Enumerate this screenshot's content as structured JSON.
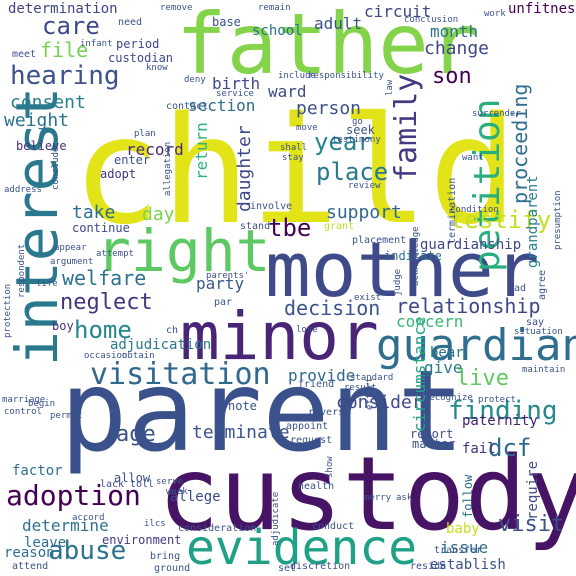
{
  "words": [
    {
      "text": "child",
      "color": "#e2e418"
    },
    {
      "text": "father",
      "color": "#84d44b"
    },
    {
      "text": "parent",
      "color": "#3b518b"
    },
    {
      "text": "custody",
      "color": "#471365"
    },
    {
      "text": "mother",
      "color": "#3e4a89"
    },
    {
      "text": "interest",
      "color": "#2a788e"
    },
    {
      "text": "minor",
      "color": "#482576"
    },
    {
      "text": "evidence",
      "color": "#1fa187"
    },
    {
      "text": "right",
      "color": "#5ec962"
    },
    {
      "text": "guardian",
      "color": "#2e6e8e"
    },
    {
      "text": "petition",
      "color": "#29af7f"
    },
    {
      "text": "visitation",
      "color": "#31688e"
    },
    {
      "text": "adoption",
      "color": "#440154"
    },
    {
      "text": "hearing",
      "color": "#3b528b"
    },
    {
      "text": "family",
      "color": "#443983"
    },
    {
      "text": "finding",
      "color": "#238a8d"
    },
    {
      "text": "abuse",
      "color": "#2c728e"
    },
    {
      "text": "home",
      "color": "#25848e"
    },
    {
      "text": "care",
      "color": "#3e4989"
    },
    {
      "text": "tbe",
      "color": "#440154"
    },
    {
      "text": "testify",
      "color": "#c2df23"
    },
    {
      "text": "proceeding",
      "color": "#2d708e"
    },
    {
      "text": "relationship",
      "color": "#3f4788"
    },
    {
      "text": "live",
      "color": "#5ec962"
    },
    {
      "text": "year",
      "color": "#26828e"
    },
    {
      "text": "place",
      "color": "#29798e"
    },
    {
      "text": "terminate",
      "color": "#3a548c"
    },
    {
      "text": "neglect",
      "color": "#46337e"
    },
    {
      "text": "welfare",
      "color": "#2d718e"
    },
    {
      "text": "age",
      "color": "#3b528b"
    },
    {
      "text": "dcf",
      "color": "#31688e"
    },
    {
      "text": "support",
      "color": "#31688e"
    },
    {
      "text": "son",
      "color": "#440154"
    },
    {
      "text": "decision",
      "color": "#3a548c"
    },
    {
      "text": "consent",
      "color": "#277f8e"
    },
    {
      "text": "consider",
      "color": "#3e4989"
    },
    {
      "text": "person",
      "color": "#3b528b"
    },
    {
      "text": "circumstance",
      "color": "#20a386"
    },
    {
      "text": "determine",
      "color": "#2c728e"
    },
    {
      "text": "visit",
      "color": "#3b528b"
    },
    {
      "text": "change",
      "color": "#414487"
    },
    {
      "text": "daughter",
      "color": "#3e4989"
    },
    {
      "text": "section",
      "color": "#2e6e8e"
    },
    {
      "text": "record",
      "color": "#482878"
    },
    {
      "text": "weight",
      "color": "#2c728e"
    },
    {
      "text": "file",
      "color": "#75d054"
    },
    {
      "text": "provide",
      "color": "#31688e"
    },
    {
      "text": "concern",
      "color": "#37b878"
    },
    {
      "text": "party",
      "color": "#38588c"
    },
    {
      "text": "month",
      "color": "#2d708e"
    },
    {
      "text": "birth",
      "color": "#3e4a89"
    },
    {
      "text": "return",
      "color": "#2db27d"
    },
    {
      "text": "give",
      "color": "#287c8e"
    },
    {
      "text": "circuit",
      "color": "#3f4788"
    },
    {
      "text": "adult",
      "color": "#3b528b"
    },
    {
      "text": "ward",
      "color": "#3e4a89"
    },
    {
      "text": "take",
      "color": "#2e6d8e"
    },
    {
      "text": "day",
      "color": "#7ad151"
    },
    {
      "text": "issue",
      "color": "#2e6d8e"
    },
    {
      "text": "establish",
      "color": "#3a548c"
    },
    {
      "text": "require",
      "color": "#3e4a89"
    },
    {
      "text": "guardianship",
      "color": "#3f4788"
    },
    {
      "text": "grandparent",
      "color": "#277f8e"
    },
    {
      "text": "adjudication",
      "color": "#2a788e"
    },
    {
      "text": "report",
      "color": "#3b528b"
    },
    {
      "text": "allege",
      "color": "#3e4989"
    },
    {
      "text": "bear",
      "color": "#2d718e"
    },
    {
      "text": "paternity",
      "color": "#482173"
    },
    {
      "text": "determination",
      "color": "#414487"
    },
    {
      "text": "environment",
      "color": "#443983"
    },
    {
      "text": "unfitness",
      "color": "#440154"
    },
    {
      "text": "school",
      "color": "#2c728e"
    },
    {
      "text": "base",
      "color": "#3b528b"
    },
    {
      "text": "period",
      "color": "#3f4788"
    },
    {
      "text": "custodian",
      "color": "#3e4a89"
    },
    {
      "text": "believe",
      "color": "#46327e"
    },
    {
      "text": "adopt",
      "color": "#46337e"
    },
    {
      "text": "enter",
      "color": "#3b528b"
    },
    {
      "text": "continue",
      "color": "#3e4989"
    },
    {
      "text": "factor",
      "color": "#2c728e"
    },
    {
      "text": "baby",
      "color": "#c8e020"
    },
    {
      "text": "leave",
      "color": "#2c728e"
    },
    {
      "text": "reason",
      "color": "#2e6d8e"
    },
    {
      "text": "fail",
      "color": "#46337e"
    },
    {
      "text": "matter",
      "color": "#3b528b"
    },
    {
      "text": "note",
      "color": "#3b528b"
    },
    {
      "text": "boy",
      "color": "#46337e"
    },
    {
      "text": "indicate",
      "color": "#2e6d8e"
    },
    {
      "text": "follow",
      "color": "#2d708e"
    },
    {
      "text": "need",
      "color": "#3b528b"
    },
    {
      "text": "meet",
      "color": "#3b528b"
    },
    {
      "text": "contact",
      "color": "#3b528b"
    },
    {
      "text": "seek",
      "color": "#3b528b"
    },
    {
      "text": "grant",
      "color": "#b8de29"
    },
    {
      "text": "involve",
      "color": "#3b528b"
    },
    {
      "text": "stand",
      "color": "#3b528b"
    },
    {
      "text": "allow",
      "color": "#3b528b"
    },
    {
      "text": "lack",
      "color": "#3b528b"
    },
    {
      "text": "toll",
      "color": "#3b528b"
    },
    {
      "text": "conduct",
      "color": "#3b528b"
    },
    {
      "text": "health",
      "color": "#3b528b"
    },
    {
      "text": "appoint",
      "color": "#3b528b"
    },
    {
      "text": "reverse",
      "color": "#3b528b"
    },
    {
      "text": "request",
      "color": "#3b528b"
    },
    {
      "text": "friend",
      "color": "#3b528b"
    },
    {
      "text": "discretion",
      "color": "#3b528b"
    },
    {
      "text": "transfer",
      "color": "#3b528b"
    },
    {
      "text": "reside",
      "color": "#3b528b"
    },
    {
      "text": "attend",
      "color": "#3b528b"
    },
    {
      "text": "ground",
      "color": "#3b528b"
    },
    {
      "text": "bring",
      "color": "#3b528b"
    },
    {
      "text": "set",
      "color": "#3b528b"
    },
    {
      "text": "say",
      "color": "#3b528b"
    },
    {
      "text": "ad",
      "color": "#3b528b"
    },
    {
      "text": "agree",
      "color": "#3b528b"
    },
    {
      "text": "ch",
      "color": "#3b528b"
    },
    {
      "text": "par",
      "color": "#3b528b"
    },
    {
      "text": "consideration",
      "color": "#3b528b"
    },
    {
      "text": "testimony",
      "color": "#3b528b"
    },
    {
      "text": "termination",
      "color": "#3b528b"
    },
    {
      "text": "placement",
      "color": "#3b528b"
    },
    {
      "text": "parents'",
      "color": "#3b528b"
    },
    {
      "text": "address",
      "color": "#3b528b"
    },
    {
      "text": "conclude",
      "color": "#3b528b"
    },
    {
      "text": "protection",
      "color": "#3b528b"
    },
    {
      "text": "respondent",
      "color": "#3b528b"
    },
    {
      "text": "argument",
      "color": "#3b528b"
    },
    {
      "text": "appear",
      "color": "#3b528b"
    },
    {
      "text": "attempt",
      "color": "#3b528b"
    },
    {
      "text": "life",
      "color": "#3b528b"
    },
    {
      "text": "occasion",
      "color": "#3b528b"
    },
    {
      "text": "obtain",
      "color": "#3b528b"
    },
    {
      "text": "marriage",
      "color": "#3b528b"
    },
    {
      "text": "control",
      "color": "#3b528b"
    },
    {
      "text": "permit",
      "color": "#3b528b"
    },
    {
      "text": "begin",
      "color": "#3b528b"
    },
    {
      "text": "infant",
      "color": "#3b528b"
    },
    {
      "text": "know",
      "color": "#3b528b"
    },
    {
      "text": "remove",
      "color": "#3b528b"
    },
    {
      "text": "remain",
      "color": "#3b528b"
    },
    {
      "text": "responsibility",
      "color": "#3b528b"
    },
    {
      "text": "include",
      "color": "#3b528b"
    },
    {
      "text": "service",
      "color": "#3b528b"
    },
    {
      "text": "deny",
      "color": "#3b528b"
    },
    {
      "text": "conclusion",
      "color": "#3b528b"
    },
    {
      "text": "work",
      "color": "#3b528b"
    },
    {
      "text": "surrender",
      "color": "#3b528b"
    },
    {
      "text": "want",
      "color": "#3b528b"
    },
    {
      "text": "condition",
      "color": "#3b528b"
    },
    {
      "text": "presumption",
      "color": "#3b528b"
    },
    {
      "text": "acknowledge",
      "color": "#3b528b"
    },
    {
      "text": "judge",
      "color": "#3b528b"
    },
    {
      "text": "exist",
      "color": "#3b528b"
    },
    {
      "text": "love",
      "color": "#3b528b"
    },
    {
      "text": "situation",
      "color": "#3b528b"
    },
    {
      "text": "maintain",
      "color": "#3b528b"
    },
    {
      "text": "recognize",
      "color": "#3b528b"
    },
    {
      "text": "protect",
      "color": "#3b528b"
    },
    {
      "text": "effort",
      "color": "#3b528b"
    },
    {
      "text": "result",
      "color": "#3b528b"
    },
    {
      "text": "standard",
      "color": "#3b528b"
    },
    {
      "text": "plan",
      "color": "#3b528b"
    },
    {
      "text": "stay",
      "color": "#3b528b"
    },
    {
      "text": "shall",
      "color": "#3b528b"
    },
    {
      "text": "allegation",
      "color": "#3b528b"
    },
    {
      "text": "review",
      "color": "#3b528b"
    },
    {
      "text": "move",
      "color": "#3b528b"
    },
    {
      "text": "show",
      "color": "#3b528b"
    },
    {
      "text": "serve",
      "color": "#3b528b"
    },
    {
      "text": "week",
      "color": "#3b528b"
    },
    {
      "text": "accord",
      "color": "#3b528b"
    },
    {
      "text": "adjudicate",
      "color": "#3b528b"
    },
    {
      "text": "merry",
      "color": "#3b528b"
    },
    {
      "text": "ask",
      "color": "#3b528b"
    },
    {
      "text": "law",
      "color": "#3b528b"
    },
    {
      "text": "go",
      "color": "#3b528b"
    },
    {
      "text": "ilcs",
      "color": "#3b528b"
    }
  ]
}
